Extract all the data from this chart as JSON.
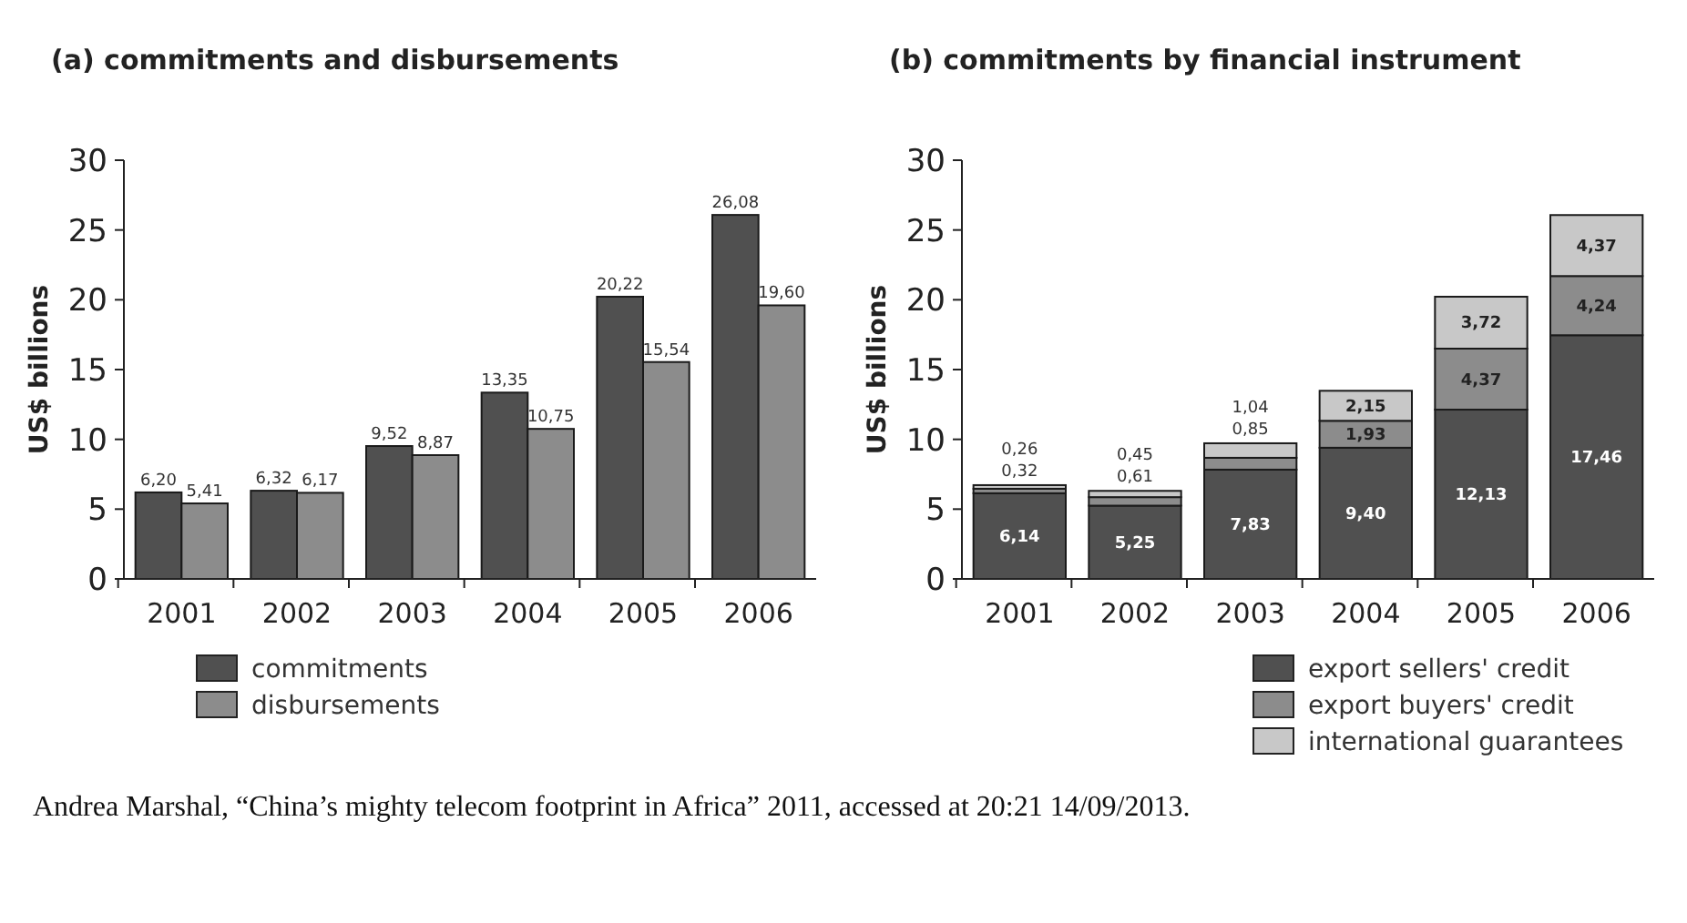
{
  "chart_data": [
    {
      "type": "bar",
      "title": "(a) commitments and disbursements",
      "ylabel": "US$ billions",
      "categories": [
        "2001",
        "2002",
        "2003",
        "2004",
        "2005",
        "2006"
      ],
      "ylim": [
        0,
        30
      ],
      "yticks": [
        0,
        5,
        10,
        15,
        20,
        25,
        30
      ],
      "grid": false,
      "legend": "bottom",
      "series": [
        {
          "name": "commitments",
          "color": "#505050",
          "values": [
            6.2,
            6.32,
            9.52,
            13.35,
            20.22,
            26.08
          ],
          "value_labels": [
            "6,20",
            "6,32",
            "9,52",
            "13,35",
            "20,22",
            "26,08"
          ]
        },
        {
          "name": "disbursements",
          "color": "#8c8c8c",
          "values": [
            5.41,
            6.17,
            8.87,
            10.75,
            15.54,
            19.6
          ],
          "value_labels": [
            "5,41",
            "6,17",
            "8,87",
            "10,75",
            "15,54",
            "19,60"
          ]
        }
      ],
      "annotations": [
        "Andrea Marshal, “China’s mighty telecom footprint in Africa” 2011, accessed at 20:21 14/09/2013."
      ]
    },
    {
      "type": "bar",
      "title": "(b) commitments by financial instrument",
      "ylabel": "US$ billions",
      "categories": [
        "2001",
        "2002",
        "2003",
        "2004",
        "2005",
        "2006"
      ],
      "ylim": [
        0,
        30
      ],
      "yticks": [
        0,
        5,
        10,
        15,
        20,
        25,
        30
      ],
      "grid": false,
      "stacked": true,
      "legend": "bottom",
      "series": [
        {
          "name": "export sellers' credit",
          "color": "#505050",
          "values": [
            6.14,
            5.25,
            7.83,
            9.4,
            12.13,
            17.46
          ],
          "value_labels": [
            "6,14",
            "5,25",
            "7,83",
            "9,40",
            "12,13",
            "17,46"
          ]
        },
        {
          "name": "export buyers' credit",
          "color": "#8c8c8c",
          "values": [
            0.32,
            0.61,
            0.85,
            1.93,
            4.37,
            4.24
          ],
          "value_labels": [
            "0,32",
            "0,61",
            "0,85",
            "1,93",
            "4,37",
            "4,24"
          ]
        },
        {
          "name": "international guarantees",
          "color": "#c8c8c8",
          "values": [
            0.26,
            0.45,
            1.04,
            2.15,
            3.72,
            4.37
          ],
          "value_labels": [
            "0,26",
            "0,45",
            "1,04",
            "2,15",
            "3,72",
            "4,37"
          ]
        }
      ]
    }
  ]
}
